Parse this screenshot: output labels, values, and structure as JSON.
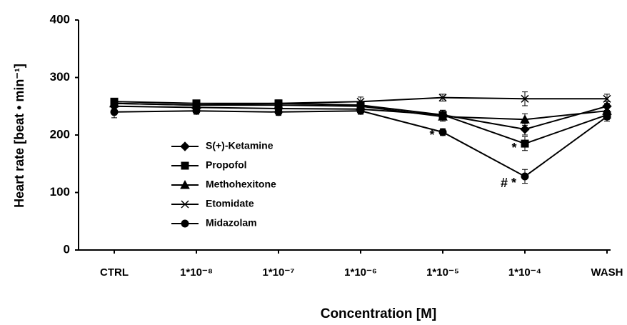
{
  "chart_data": {
    "type": "line",
    "x_label": "Concentration [M]",
    "y_label": "Heart rate  [beat • min⁻¹]",
    "categories": [
      "CTRL",
      "1*10⁻⁸",
      "1*10⁻⁷",
      "1*10⁻⁶",
      "1*10⁻⁵",
      "1*10⁻⁴",
      "WASH"
    ],
    "ylim": [
      0,
      400
    ],
    "yticks": [
      0,
      100,
      200,
      300,
      400
    ],
    "legend": "center-left",
    "series": [
      {
        "name": "S(+)-Ketamine",
        "marker": "diamond",
        "color": "#000000",
        "values": [
          250,
          248,
          246,
          245,
          235,
          210,
          250
        ],
        "errors": [
          6,
          6,
          6,
          6,
          8,
          10,
          8
        ]
      },
      {
        "name": "Propofol",
        "marker": "square",
        "color": "#000000",
        "values": [
          258,
          255,
          255,
          252,
          235,
          185,
          235
        ],
        "errors": [
          5,
          5,
          6,
          6,
          8,
          12,
          8
        ]
      },
      {
        "name": "Methohexitone",
        "marker": "triangle",
        "color": "#000000",
        "values": [
          255,
          252,
          252,
          250,
          232,
          227,
          242
        ],
        "errors": [
          5,
          5,
          5,
          6,
          8,
          10,
          8
        ]
      },
      {
        "name": "Etomidate",
        "marker": "x",
        "color": "#000000",
        "values": [
          255,
          252,
          255,
          258,
          265,
          263,
          263
        ],
        "errors": [
          6,
          6,
          6,
          8,
          6,
          12,
          8
        ]
      },
      {
        "name": "Midazolam",
        "marker": "circle",
        "color": "#000000",
        "values": [
          240,
          242,
          240,
          242,
          205,
          128,
          232
        ],
        "errors": [
          10,
          6,
          6,
          6,
          6,
          12,
          8
        ]
      }
    ],
    "annotations": [
      "*",
      "*",
      "# *"
    ]
  }
}
